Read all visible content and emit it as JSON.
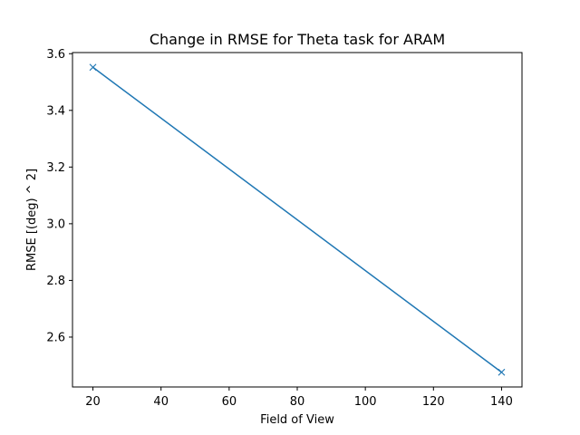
{
  "chart_data": {
    "type": "line",
    "title": "Change in RMSE for Theta task for ARAM",
    "xlabel": "Field of View",
    "ylabel": "RMSE [(deg) ^ 2]",
    "xlim": [
      14,
      146
    ],
    "ylim": [
      2.424,
      3.604
    ],
    "xticks": [
      20,
      40,
      60,
      80,
      100,
      120,
      140
    ],
    "xtick_labels": [
      "20",
      "40",
      "60",
      "80",
      "100",
      "120",
      "140"
    ],
    "yticks": [
      2.6,
      2.8,
      3.0,
      3.2,
      3.4,
      3.6
    ],
    "ytick_labels": [
      "2.6",
      "2.8",
      "3.0",
      "3.2",
      "3.4",
      "3.6"
    ],
    "grid": false,
    "series": [
      {
        "x": [
          20,
          140
        ],
        "y": [
          3.552,
          2.476
        ],
        "marker": "x",
        "color": "#1f77b4"
      }
    ]
  }
}
